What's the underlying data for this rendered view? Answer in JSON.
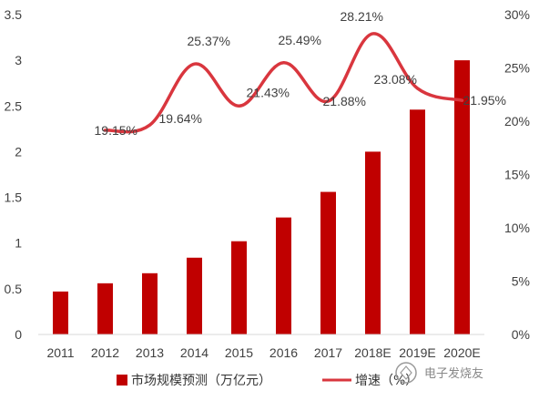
{
  "chart_data": {
    "type": "bar+line",
    "categories": [
      "2011",
      "2012",
      "2013",
      "2014",
      "2015",
      "2016",
      "2017",
      "2018E",
      "2019E",
      "2020E"
    ],
    "series": [
      {
        "name": "市场规模预测（万亿元）",
        "type": "bar",
        "axis": "left",
        "values": [
          0.47,
          0.56,
          0.67,
          0.84,
          1.02,
          1.28,
          1.56,
          2.0,
          2.46,
          3.0
        ]
      },
      {
        "name": "增速（%）",
        "type": "line",
        "axis": "right",
        "values": [
          null,
          19.15,
          19.64,
          25.37,
          21.43,
          25.49,
          21.88,
          28.21,
          23.08,
          21.95
        ],
        "labels": [
          "",
          "19.15%",
          "19.64%",
          "25.37%",
          "21.43%",
          "25.49%",
          "21.88%",
          "28.21%",
          "23.08%",
          "21.95%"
        ]
      }
    ],
    "y_left": {
      "min": 0,
      "max": 3.5,
      "ticks": [
        "0",
        "0.5",
        "1",
        "1.5",
        "2",
        "2.5",
        "3",
        "3.5"
      ]
    },
    "y_right": {
      "min": 0,
      "max": 30,
      "ticks": [
        "0%",
        "5%",
        "10%",
        "15%",
        "20%",
        "25%",
        "30%"
      ]
    },
    "legend_position": "bottom",
    "grid": false,
    "colors": {
      "bar": "#c00000",
      "line": "#d9363e"
    }
  },
  "watermark": "电子发烧友"
}
